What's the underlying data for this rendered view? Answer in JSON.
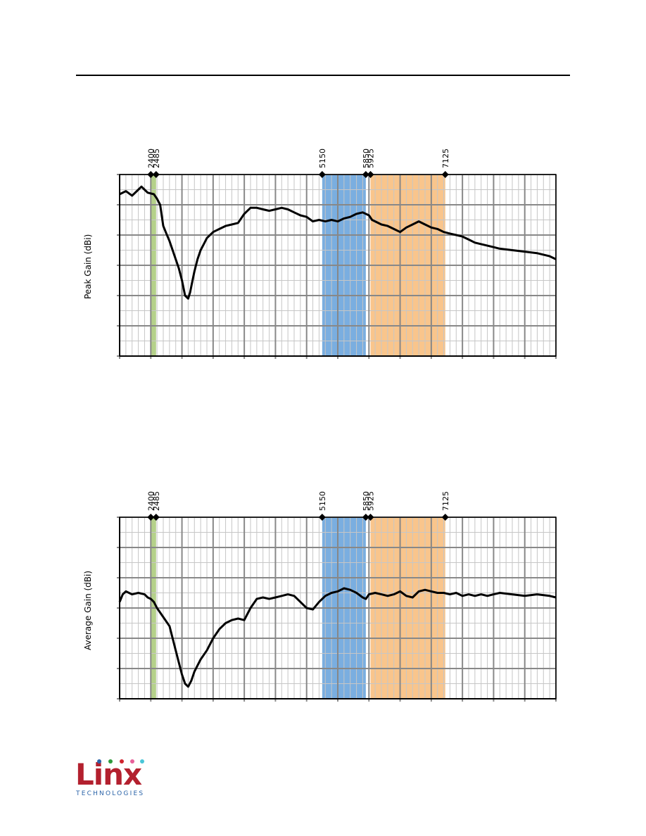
{
  "chart_data": [
    {
      "type": "line",
      "ylabel": "Peak Gain (dBi)",
      "xlim": [
        1900,
        8900
      ],
      "ylim": [
        0,
        6
      ],
      "grid": true,
      "bands": [
        {
          "start": 2400,
          "end": 2485,
          "color": "#b5d18a"
        },
        {
          "start": 5150,
          "end": 5850,
          "color": "#7aaee0"
        },
        {
          "start": 5925,
          "end": 7125,
          "color": "#f9c58c"
        }
      ],
      "markers": [
        {
          "x": 2400,
          "label": "2400"
        },
        {
          "x": 2485,
          "label": "2485"
        },
        {
          "x": 5150,
          "label": "5150"
        },
        {
          "x": 5850,
          "label": "5850"
        },
        {
          "x": 5925,
          "label": "5925"
        },
        {
          "x": 7125,
          "label": "7125"
        }
      ],
      "series": [
        {
          "values": [
            [
              1900,
              5.35
            ],
            [
              2000,
              5.45
            ],
            [
              2100,
              5.3
            ],
            [
              2200,
              5.5
            ],
            [
              2250,
              5.6
            ],
            [
              2300,
              5.5
            ],
            [
              2350,
              5.4
            ],
            [
              2450,
              5.35
            ],
            [
              2500,
              5.2
            ],
            [
              2550,
              5.0
            ],
            [
              2600,
              4.3
            ],
            [
              2650,
              4.05
            ],
            [
              2700,
              3.8
            ],
            [
              2750,
              3.5
            ],
            [
              2800,
              3.2
            ],
            [
              2850,
              2.9
            ],
            [
              2900,
              2.5
            ],
            [
              2950,
              2.0
            ],
            [
              3000,
              1.9
            ],
            [
              3030,
              2.1
            ],
            [
              3060,
              2.4
            ],
            [
              3100,
              2.8
            ],
            [
              3150,
              3.2
            ],
            [
              3200,
              3.5
            ],
            [
              3250,
              3.7
            ],
            [
              3300,
              3.9
            ],
            [
              3400,
              4.1
            ],
            [
              3500,
              4.2
            ],
            [
              3600,
              4.3
            ],
            [
              3700,
              4.35
            ],
            [
              3800,
              4.4
            ],
            [
              3900,
              4.7
            ],
            [
              4000,
              4.9
            ],
            [
              4100,
              4.9
            ],
            [
              4200,
              4.85
            ],
            [
              4300,
              4.8
            ],
            [
              4400,
              4.85
            ],
            [
              4500,
              4.9
            ],
            [
              4600,
              4.85
            ],
            [
              4700,
              4.75
            ],
            [
              4800,
              4.65
            ],
            [
              4900,
              4.6
            ],
            [
              5000,
              4.45
            ],
            [
              5100,
              4.5
            ],
            [
              5200,
              4.45
            ],
            [
              5300,
              4.5
            ],
            [
              5400,
              4.45
            ],
            [
              5500,
              4.55
            ],
            [
              5600,
              4.6
            ],
            [
              5700,
              4.7
            ],
            [
              5800,
              4.75
            ],
            [
              5900,
              4.65
            ],
            [
              5950,
              4.5
            ],
            [
              6000,
              4.45
            ],
            [
              6100,
              4.35
            ],
            [
              6200,
              4.3
            ],
            [
              6300,
              4.2
            ],
            [
              6400,
              4.1
            ],
            [
              6500,
              4.25
            ],
            [
              6600,
              4.35
            ],
            [
              6700,
              4.45
            ],
            [
              6800,
              4.35
            ],
            [
              6900,
              4.25
            ],
            [
              7000,
              4.2
            ],
            [
              7100,
              4.1
            ],
            [
              7200,
              4.05
            ],
            [
              7300,
              4.0
            ],
            [
              7400,
              3.95
            ],
            [
              7500,
              3.85
            ],
            [
              7600,
              3.75
            ],
            [
              7700,
              3.7
            ],
            [
              7800,
              3.65
            ],
            [
              7900,
              3.6
            ],
            [
              8000,
              3.55
            ],
            [
              8200,
              3.5
            ],
            [
              8400,
              3.45
            ],
            [
              8600,
              3.4
            ],
            [
              8800,
              3.3
            ],
            [
              8900,
              3.2
            ]
          ]
        }
      ]
    },
    {
      "type": "line",
      "ylabel": "Average Gain (dBi)",
      "xlim": [
        1900,
        8900
      ],
      "ylim": [
        0,
        6
      ],
      "grid": true,
      "bands": [
        {
          "start": 2400,
          "end": 2485,
          "color": "#b5d18a"
        },
        {
          "start": 5150,
          "end": 5850,
          "color": "#7aaee0"
        },
        {
          "start": 5925,
          "end": 7125,
          "color": "#f9c58c"
        }
      ],
      "markers": [
        {
          "x": 2400,
          "label": "2400"
        },
        {
          "x": 2485,
          "label": "2485"
        },
        {
          "x": 5150,
          "label": "5150"
        },
        {
          "x": 5850,
          "label": "5850"
        },
        {
          "x": 5925,
          "label": "5925"
        },
        {
          "x": 7125,
          "label": "7125"
        }
      ],
      "series": [
        {
          "values": [
            [
              1900,
              3.2
            ],
            [
              1950,
              3.45
            ],
            [
              2000,
              3.55
            ],
            [
              2050,
              3.5
            ],
            [
              2100,
              3.45
            ],
            [
              2200,
              3.5
            ],
            [
              2300,
              3.45
            ],
            [
              2350,
              3.35
            ],
            [
              2400,
              3.3
            ],
            [
              2450,
              3.2
            ],
            [
              2500,
              3.0
            ],
            [
              2600,
              2.7
            ],
            [
              2700,
              2.4
            ],
            [
              2750,
              2.0
            ],
            [
              2800,
              1.6
            ],
            [
              2850,
              1.2
            ],
            [
              2900,
              0.8
            ],
            [
              2950,
              0.5
            ],
            [
              3000,
              0.4
            ],
            [
              3050,
              0.6
            ],
            [
              3100,
              0.9
            ],
            [
              3200,
              1.3
            ],
            [
              3300,
              1.6
            ],
            [
              3400,
              2.0
            ],
            [
              3500,
              2.3
            ],
            [
              3600,
              2.5
            ],
            [
              3700,
              2.6
            ],
            [
              3800,
              2.65
            ],
            [
              3900,
              2.6
            ],
            [
              4000,
              3.0
            ],
            [
              4100,
              3.3
            ],
            [
              4200,
              3.35
            ],
            [
              4300,
              3.3
            ],
            [
              4400,
              3.35
            ],
            [
              4500,
              3.4
            ],
            [
              4600,
              3.45
            ],
            [
              4700,
              3.4
            ],
            [
              4800,
              3.2
            ],
            [
              4900,
              3.0
            ],
            [
              5000,
              2.95
            ],
            [
              5100,
              3.2
            ],
            [
              5200,
              3.4
            ],
            [
              5300,
              3.5
            ],
            [
              5400,
              3.55
            ],
            [
              5500,
              3.65
            ],
            [
              5600,
              3.6
            ],
            [
              5700,
              3.5
            ],
            [
              5800,
              3.35
            ],
            [
              5850,
              3.3
            ],
            [
              5900,
              3.45
            ],
            [
              6000,
              3.5
            ],
            [
              6100,
              3.45
            ],
            [
              6200,
              3.4
            ],
            [
              6300,
              3.45
            ],
            [
              6400,
              3.55
            ],
            [
              6500,
              3.4
            ],
            [
              6600,
              3.35
            ],
            [
              6700,
              3.55
            ],
            [
              6800,
              3.6
            ],
            [
              6900,
              3.55
            ],
            [
              7000,
              3.5
            ],
            [
              7100,
              3.5
            ],
            [
              7200,
              3.45
            ],
            [
              7300,
              3.5
            ],
            [
              7400,
              3.4
            ],
            [
              7500,
              3.45
            ],
            [
              7600,
              3.4
            ],
            [
              7700,
              3.45
            ],
            [
              7800,
              3.4
            ],
            [
              7900,
              3.45
            ],
            [
              8000,
              3.5
            ],
            [
              8200,
              3.45
            ],
            [
              8400,
              3.4
            ],
            [
              8600,
              3.45
            ],
            [
              8800,
              3.4
            ],
            [
              8900,
              3.35
            ]
          ]
        }
      ]
    }
  ],
  "logo": {
    "word": "Linx",
    "sub": "TECHNOLOGIES",
    "dot_colors": [
      "#2a63a8",
      "#2e9a3c",
      "#d0232e",
      "#e8609a",
      "#49c6d8"
    ]
  }
}
